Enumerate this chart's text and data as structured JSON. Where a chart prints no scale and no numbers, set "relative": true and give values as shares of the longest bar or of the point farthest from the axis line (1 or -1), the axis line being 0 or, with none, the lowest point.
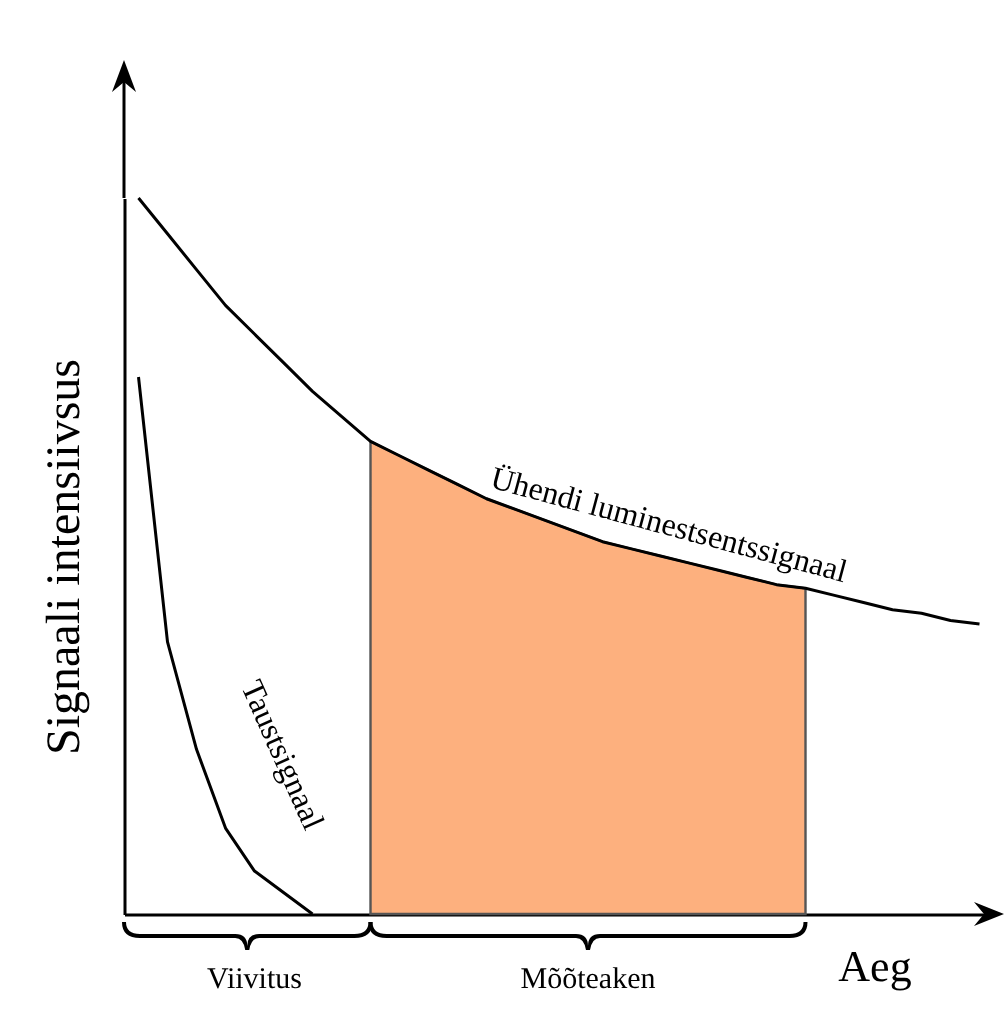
{
  "chart_data": {
    "type": "line",
    "relative": true,
    "xlabel": "Aeg",
    "ylabel": "Signaali intensiivsus",
    "annotations": [
      "Viivitus",
      "Mõõteaken"
    ],
    "categories": [
      null,
      null,
      null,
      null,
      null,
      null,
      null,
      null,
      null,
      null,
      null,
      null,
      null,
      null,
      null,
      null,
      null,
      null,
      null,
      null,
      null,
      null,
      null,
      null,
      null,
      null,
      null,
      null,
      null,
      null
    ],
    "series": [
      {
        "name": "Ühendi luminestsentssignaal",
        "color": "#000000",
        "values": [
          1.0,
          0.95,
          0.9,
          0.85,
          0.81,
          0.77,
          0.73,
          0.695,
          0.66,
          0.64,
          0.62,
          0.6,
          0.58,
          0.565,
          0.55,
          0.535,
          0.52,
          0.51,
          0.5,
          0.49,
          0.48,
          0.47,
          0.46,
          0.455,
          0.445,
          0.435,
          0.425,
          0.42,
          0.41,
          0.405
        ]
      },
      {
        "name": "Taustsignaal",
        "color": "#000000",
        "values": [
          0.75,
          0.38,
          0.23,
          0.12,
          0.06,
          0.03,
          0.0,
          null,
          null,
          null,
          null,
          null,
          null,
          null,
          null,
          null,
          null,
          null,
          null,
          null,
          null,
          null,
          null,
          null,
          null,
          null,
          null,
          null,
          null,
          null
        ]
      },
      {
        "type": "area",
        "color": "#fdb07e",
        "values": [
          null,
          null,
          null,
          null,
          null,
          null,
          null,
          null,
          0.66,
          0.64,
          0.62,
          0.6,
          0.58,
          0.565,
          0.55,
          0.535,
          0.52,
          0.51,
          0.5,
          0.49,
          0.48,
          0.47,
          0.46,
          0.455,
          null,
          null,
          null,
          null,
          null,
          null
        ]
      }
    ]
  }
}
